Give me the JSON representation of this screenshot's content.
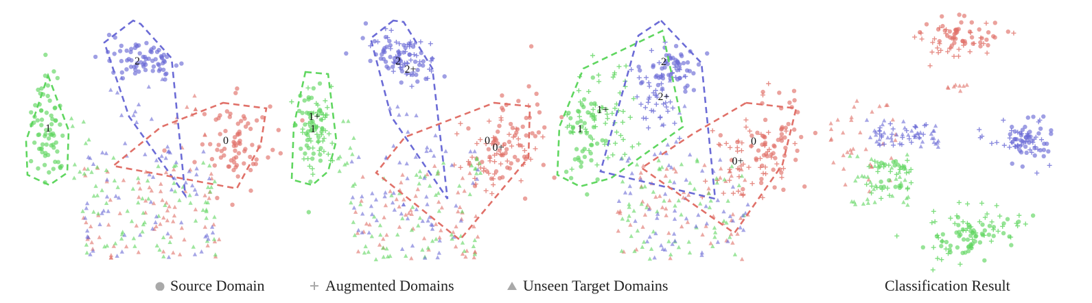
{
  "colors": {
    "class_0": "#e07068",
    "class_1": "#5fd65f",
    "class_2": "#6b6bd6",
    "legend_marker": "#a9a9a9"
  },
  "legend": {
    "source": "Source Domain",
    "augmented": "Augmented Domains",
    "unseen": "Unseen Target Domains"
  },
  "caption": "Classification Result",
  "chart_data": [
    {
      "type": "scatter",
      "panel": 1,
      "hull_labels": [
        "0",
        "1",
        "2"
      ],
      "clusters": [
        {
          "class": "0",
          "region": "right-center"
        },
        {
          "class": "1",
          "region": "far-left"
        },
        {
          "class": "2",
          "region": "top-center"
        }
      ],
      "grid": false
    },
    {
      "type": "scatter",
      "panel": 2,
      "hull_labels": [
        "0",
        "0+",
        "1+",
        "1",
        "2",
        "2+"
      ],
      "grid": false
    },
    {
      "type": "scatter",
      "panel": 3,
      "hull_labels": [
        "0",
        "0+",
        "1+",
        "1",
        "2",
        "2+"
      ],
      "grid": false
    },
    {
      "type": "scatter",
      "panel": 4,
      "hull_labels": [],
      "grid": false
    }
  ]
}
